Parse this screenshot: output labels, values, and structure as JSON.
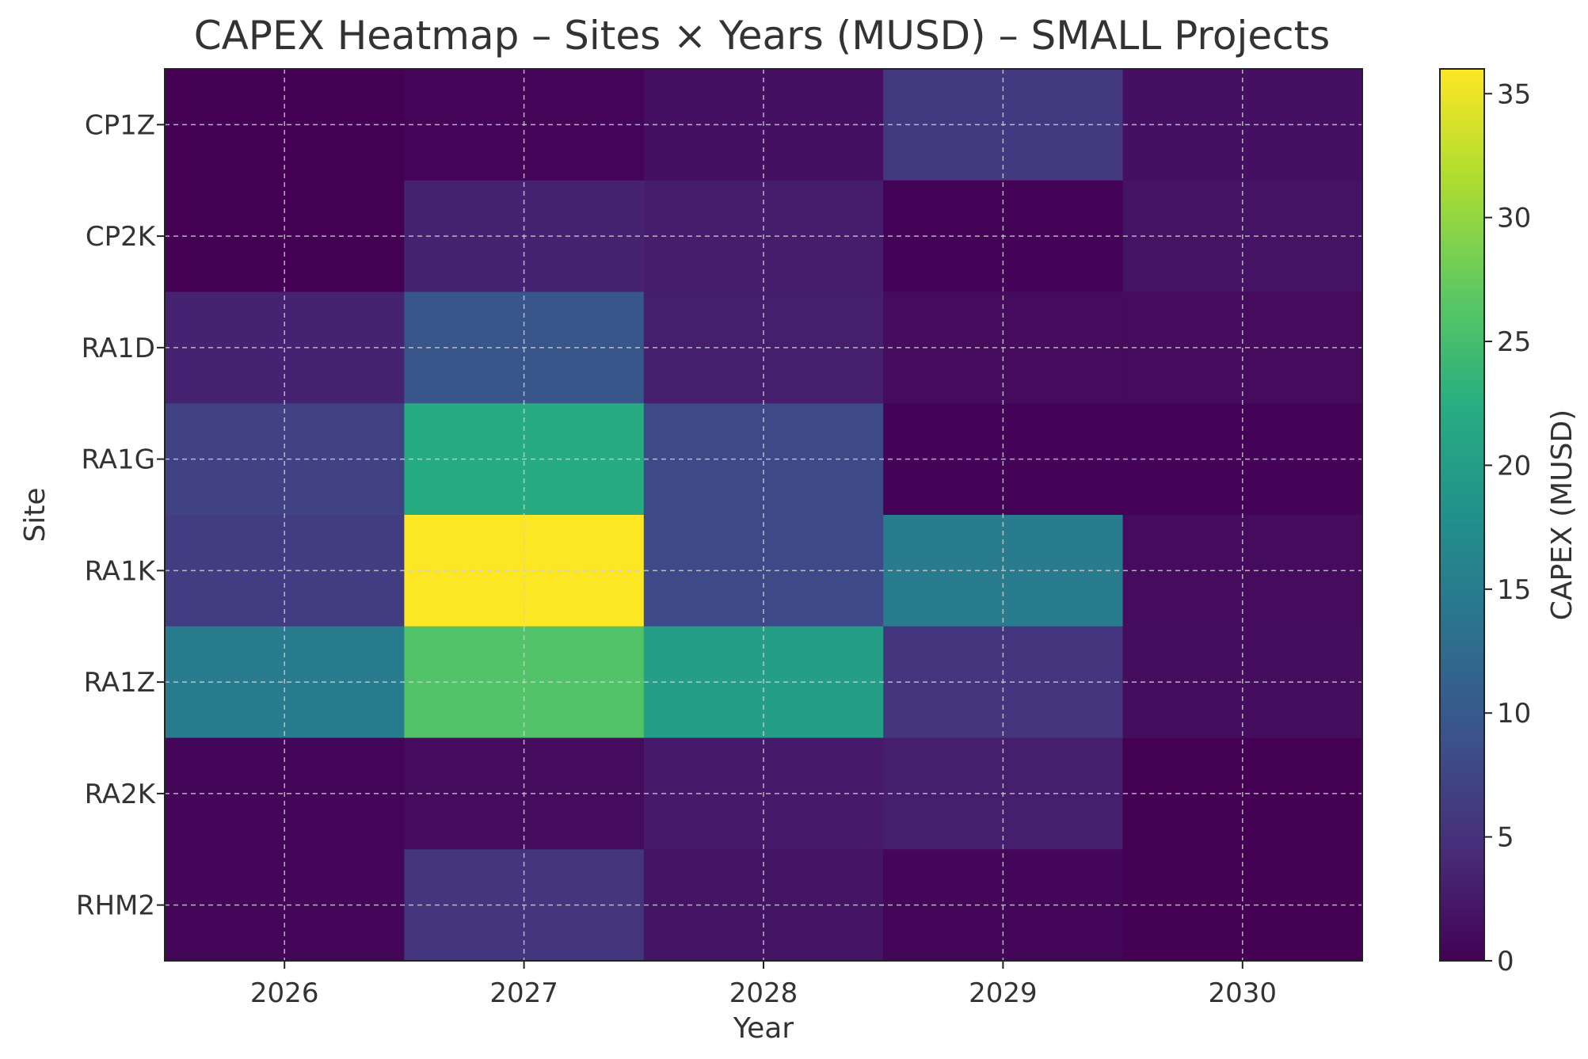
{
  "chart_data": {
    "type": "heatmap",
    "title": "CAPEX Heatmap – Sites × Years (MUSD) – SMALL Projects",
    "xlabel": "Year",
    "ylabel": "Site",
    "x": [
      "2026",
      "2027",
      "2028",
      "2029",
      "2030"
    ],
    "y": [
      "CP1Z",
      "CP2K",
      "RA1D",
      "RA1G",
      "RA1K",
      "RA1Z",
      "RA2K",
      "RHM2"
    ],
    "values": [
      [
        0.0,
        0.3,
        1.5,
        6.0,
        1.5
      ],
      [
        0.0,
        3.5,
        2.8,
        0.2,
        1.8
      ],
      [
        3.5,
        9.5,
        3.0,
        1.0,
        1.0
      ],
      [
        7.0,
        22.0,
        8.0,
        0.2,
        0.2
      ],
      [
        6.5,
        36.0,
        8.0,
        15.0,
        1.0
      ],
      [
        15.0,
        26.0,
        20.0,
        5.5,
        1.2
      ],
      [
        0.5,
        1.0,
        2.5,
        3.0,
        0.0
      ],
      [
        0.5,
        5.5,
        2.0,
        0.5,
        0.0
      ]
    ],
    "colormap": "viridis",
    "colorbar": {
      "label": "CAPEX (MUSD)",
      "range": [
        0,
        36
      ],
      "ticks": [
        0,
        5,
        10,
        15,
        20,
        25,
        30,
        35
      ]
    },
    "grid": true
  }
}
